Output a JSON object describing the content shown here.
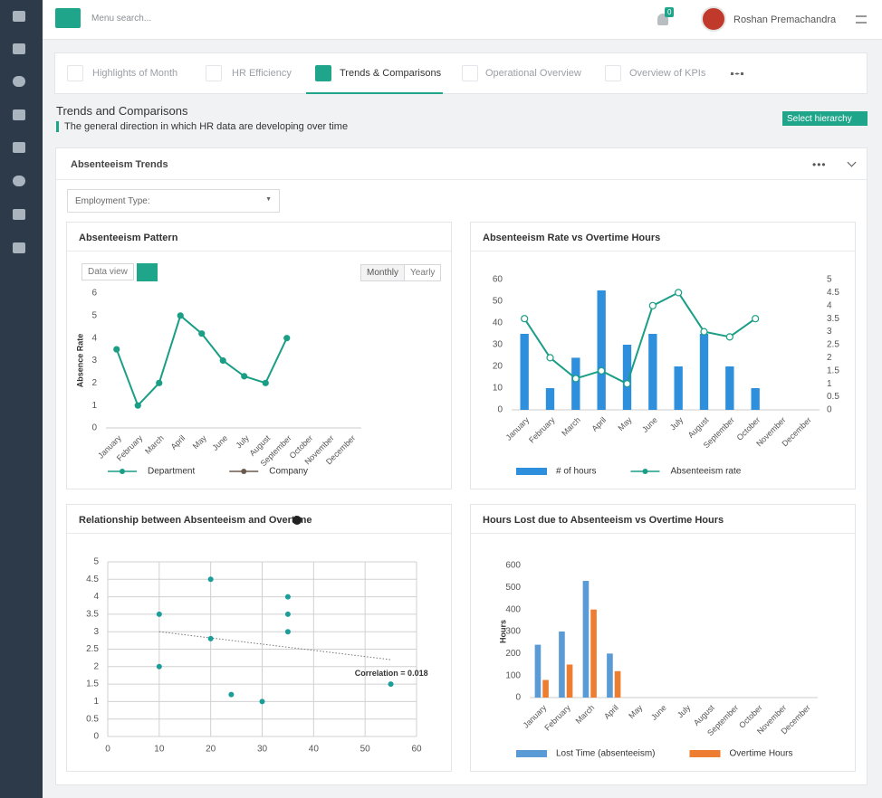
{
  "header": {
    "search_placeholder": "Menu search...",
    "badge": "0",
    "user": "Roshan Premachandra"
  },
  "tabs": [
    "Highlights of Month",
    "HR Efficiency",
    "Trends & Comparisons",
    "Operational Overview",
    "Overview of KPIs"
  ],
  "page": {
    "title": "Trends and Comparisons",
    "subtitle": "The general direction in which HR data are developing over time",
    "button": "Select hierarchy"
  },
  "panel": {
    "title": "Absenteeism Trends",
    "filter": "Employment Type:"
  },
  "chart_data": [
    {
      "type": "line",
      "title": "Absenteeism Pattern",
      "buttons": [
        "Data view",
        "Monthly",
        "Yearly"
      ],
      "ylabel": "Absence Rate",
      "categories": [
        "January",
        "February",
        "March",
        "April",
        "May",
        "June",
        "July",
        "August",
        "September",
        "October",
        "November",
        "December"
      ],
      "series": [
        {
          "name": "Department",
          "color": "#1a9e85",
          "values": [
            3.5,
            1,
            2,
            5,
            4.2,
            3,
            2.3,
            2,
            4,
            null,
            null,
            null
          ]
        },
        {
          "name": "Company",
          "color": "#6b5a4e",
          "values": [
            null,
            null,
            null,
            null,
            null,
            null,
            null,
            null,
            null,
            null,
            null,
            null
          ]
        }
      ],
      "ylim": [
        0,
        6
      ],
      "yticks": [
        0,
        1,
        2,
        3,
        4,
        5,
        6
      ],
      "grid": false
    },
    {
      "type": "bar",
      "title": "Absenteeism Rate vs Overtime Hours",
      "categories": [
        "January",
        "February",
        "March",
        "April",
        "May",
        "June",
        "July",
        "August",
        "September",
        "October",
        "November",
        "December"
      ],
      "series": [
        {
          "name": "# of hours",
          "color": "#2e8fdc",
          "values": [
            35,
            10,
            24,
            55,
            30,
            35,
            20,
            35,
            20,
            10,
            null,
            null
          ]
        },
        {
          "name": "Absenteeism rate",
          "type": "line",
          "axis": "y2",
          "color": "#1a9e85",
          "values": [
            3.5,
            2,
            1.2,
            1.5,
            1,
            4,
            4.5,
            3,
            2.8,
            3.5,
            null,
            null
          ]
        }
      ],
      "ylim": [
        0,
        60
      ],
      "yticks": [
        0,
        10,
        20,
        30,
        40,
        50,
        60
      ],
      "y2lim": [
        0,
        5
      ],
      "y2ticks": [
        0,
        0.5,
        1,
        1.5,
        2,
        2.5,
        3,
        3.5,
        4,
        4.5,
        5
      ],
      "grid": false
    },
    {
      "type": "scatter",
      "title": "Relationship between Absenteeism and Overtime",
      "color": "#1a9e9a",
      "x": [
        10,
        10,
        20,
        20,
        24,
        30,
        35,
        35,
        35,
        55
      ],
      "y": [
        3.5,
        2,
        4.5,
        2.8,
        1.2,
        1,
        4,
        3.5,
        3,
        1.5
      ],
      "trendline": {
        "x": [
          10,
          55
        ],
        "y": [
          3,
          2.2
        ]
      },
      "annotation": "Correlation  = 0.018",
      "xlim": [
        0,
        60
      ],
      "xticks": [
        0,
        10,
        20,
        30,
        40,
        50,
        60
      ],
      "ylim": [
        0,
        5
      ],
      "yticks": [
        0,
        0.5,
        1,
        1.5,
        2,
        2.5,
        3,
        3.5,
        4,
        4.5,
        5
      ],
      "grid": true
    },
    {
      "type": "bar",
      "title": "Hours Lost due to Absenteeism vs Overtime Hours",
      "ylabel": "Hours",
      "categories": [
        "January",
        "February",
        "March",
        "April",
        "May",
        "June",
        "July",
        "August",
        "September",
        "October",
        "November",
        "December"
      ],
      "series": [
        {
          "name": "Lost Time (absenteeism)",
          "color": "#5b9bd5",
          "values": [
            240,
            300,
            530,
            200,
            null,
            null,
            null,
            null,
            null,
            null,
            null,
            null
          ]
        },
        {
          "name": "Overtime Hours",
          "color": "#ed7d31",
          "values": [
            80,
            150,
            400,
            120,
            null,
            null,
            null,
            null,
            null,
            null,
            null,
            null
          ]
        }
      ],
      "ylim": [
        0,
        600
      ],
      "yticks": [
        0,
        100,
        200,
        300,
        400,
        500,
        600
      ],
      "grid": false
    }
  ]
}
